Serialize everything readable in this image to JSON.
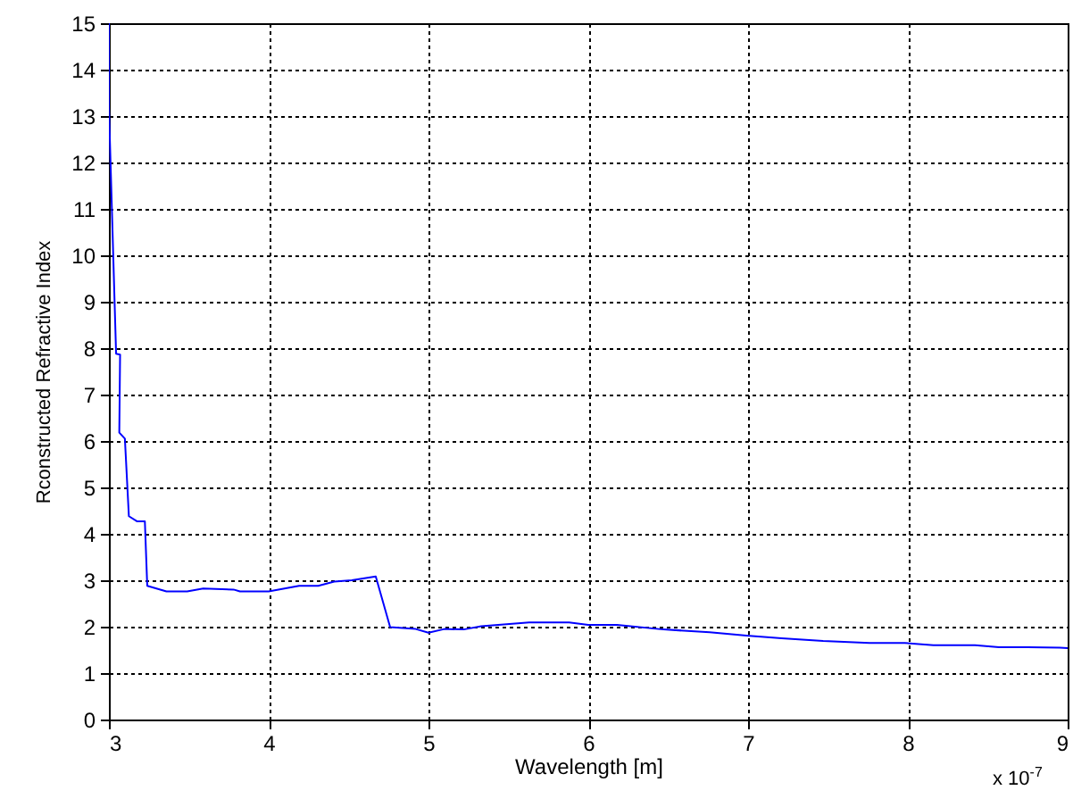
{
  "chart_data": {
    "type": "line",
    "xlabel": "Wavelength  [m]",
    "ylabel": "Rconstructed Refractive Index",
    "annotations": [
      "x 10$^{-7}$"
    ],
    "series": [
      {
        "color": "#0000ff",
        "x": [
          3.0,
          3.0,
          3.045,
          3.07,
          3.065,
          3.1,
          3.125,
          3.175,
          3.225,
          3.24,
          3.36,
          3.49,
          3.59,
          3.78,
          3.82,
          4.0,
          4.19,
          4.31,
          4.41,
          4.52,
          4.67,
          4.76,
          4.92,
          5.0,
          5.1,
          5.22,
          5.33,
          5.63,
          5.88,
          6.0,
          6.18,
          6.47,
          6.76,
          6.99,
          7.21,
          7.47,
          7.76,
          7.98,
          8.16,
          8.42,
          8.57,
          8.75,
          8.95,
          9.0
        ],
        "values": [
          15,
          13.2,
          7.88,
          7.86,
          6.18,
          6.05,
          4.38,
          4.27,
          4.27,
          2.88,
          2.76,
          2.76,
          2.82,
          2.8,
          2.76,
          2.76,
          2.88,
          2.88,
          2.97,
          3.0,
          3.08,
          1.99,
          1.95,
          1.87,
          1.95,
          1.94,
          2.01,
          2.09,
          2.09,
          2.04,
          2.04,
          1.94,
          1.88,
          1.81,
          1.75,
          1.69,
          1.65,
          1.65,
          1.6,
          1.6,
          1.56,
          1.56,
          1.55,
          1.54
        ]
      }
    ],
    "xlim": [
      3,
      9
    ],
    "xticks": [
      3,
      4,
      5,
      6,
      7,
      8,
      9
    ],
    "ylim": [
      0,
      15
    ],
    "yticks": [
      0,
      1,
      2,
      3,
      4,
      5,
      6,
      7,
      8,
      9,
      10,
      11,
      12,
      13,
      14,
      15
    ],
    "grid": true,
    "marker": "none",
    "line_style": "solid"
  }
}
